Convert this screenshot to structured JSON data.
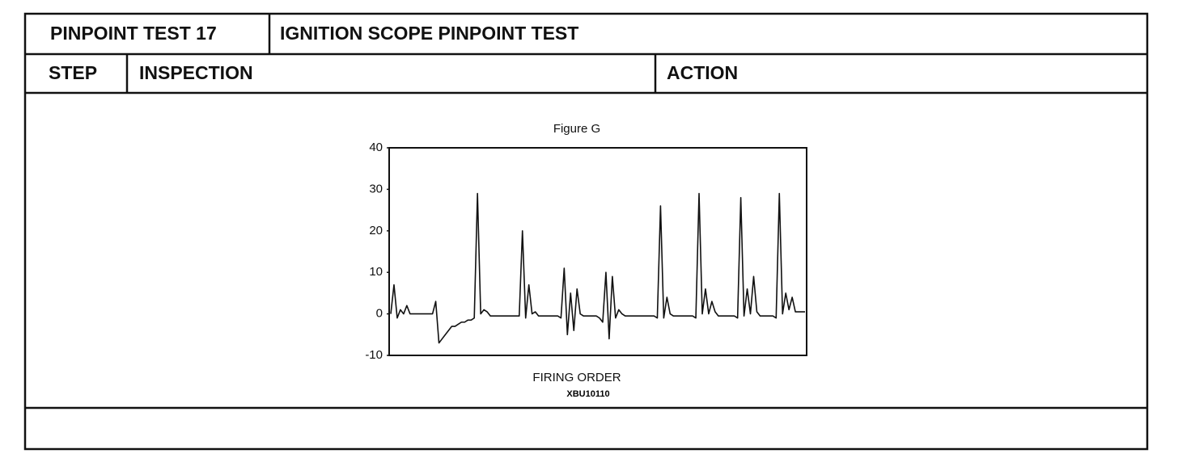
{
  "header": {
    "test": "PINPOINT TEST 17",
    "title": "IGNITION SCOPE PINPOINT TEST"
  },
  "columns": {
    "step": "STEP",
    "inspection": "INSPECTION",
    "action": "ACTION"
  },
  "chart_data": {
    "type": "line",
    "title": "Figure G",
    "x_label": "FIRING ORDER",
    "figure_code": "XBU10110",
    "ylim": [
      -10,
      40
    ],
    "yticks": [
      -10,
      0,
      10,
      20,
      30,
      40
    ],
    "color": "#111111",
    "values": [
      0,
      7,
      -1,
      1,
      0,
      2,
      0,
      0,
      0,
      0,
      0,
      0,
      0,
      0,
      3,
      -7,
      -6,
      -5,
      -4,
      -3,
      -3,
      -2.5,
      -2,
      -2,
      -1.5,
      -1.5,
      -1,
      29,
      0,
      1,
      0.5,
      -0.5,
      -0.5,
      -0.5,
      -0.5,
      -0.5,
      -0.5,
      -0.5,
      -0.5,
      -0.5,
      -0.5,
      20,
      -1,
      7,
      0,
      0.5,
      -0.5,
      -0.5,
      -0.5,
      -0.5,
      -0.5,
      -0.5,
      -0.5,
      -1,
      11,
      -5,
      5,
      -4,
      6,
      0,
      -0.5,
      -0.5,
      -0.5,
      -0.5,
      -0.5,
      -1,
      -2,
      10,
      -6,
      9,
      -1,
      1,
      0,
      -0.5,
      -0.5,
      -0.5,
      -0.5,
      -0.5,
      -0.5,
      -0.5,
      -0.5,
      -0.5,
      -0.5,
      -1,
      26,
      -1,
      4,
      0,
      -0.5,
      -0.5,
      -0.5,
      -0.5,
      -0.5,
      -0.5,
      -0.5,
      -1,
      29,
      0,
      6,
      0,
      3,
      0.5,
      -0.5,
      -0.5,
      -0.5,
      -0.5,
      -0.5,
      -0.5,
      -1,
      28,
      -0.5,
      6,
      0,
      9,
      0.5,
      -0.5,
      -0.5,
      -0.5,
      -0.5,
      -0.5,
      -1,
      29,
      0,
      5,
      1,
      4,
      0.5,
      0.5,
      0.5,
      0.5
    ]
  }
}
